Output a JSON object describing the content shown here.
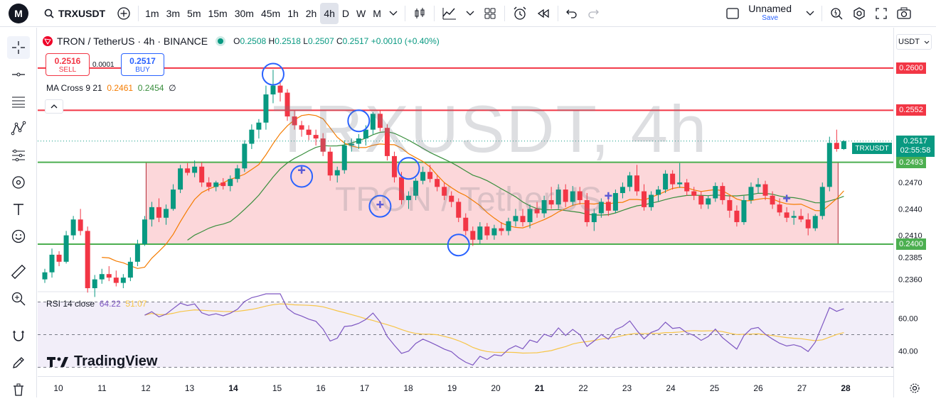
{
  "toolbar": {
    "logo_text": "M",
    "symbol": "TRXUSDT",
    "intervals": [
      "1m",
      "3m",
      "5m",
      "15m",
      "30m",
      "45m",
      "1h",
      "2h",
      "4h",
      "D",
      "W",
      "M"
    ],
    "active_interval": "4h",
    "layout_name": "Unnamed",
    "layout_save": "Save"
  },
  "legend": {
    "title": "TRON / TetherUS · 4h · BINANCE",
    "o_label": "O",
    "o": "0.2508",
    "h_label": "H",
    "h": "0.2518",
    "l_label": "L",
    "l": "0.2507",
    "c_label": "C",
    "c": "0.2517",
    "change": "+0.0010 (+0.40%)"
  },
  "trade": {
    "sell_price": "0.2516",
    "sell_label": "SELL",
    "spread": "0.0001",
    "buy_price": "0.2517",
    "buy_label": "BUY"
  },
  "ma": {
    "label": "MA Cross 9 21",
    "v1": "0.2461",
    "v2": "0.2454",
    "suffix": "∅"
  },
  "rsi": {
    "label": "RSI 14 close",
    "v1": "64.22",
    "v2": "51.07",
    "levels": [
      "60.00",
      "40.00"
    ]
  },
  "brand": "TradingView",
  "price_axis": {
    "currency": "USDT",
    "labels": [
      "0.2470",
      "0.2440",
      "0.2410",
      "0.2385",
      "0.2360"
    ],
    "tags": [
      {
        "text": "0.2600",
        "color": "#f23645"
      },
      {
        "text": "0.2552",
        "color": "#f23645"
      },
      {
        "text": "0.2517",
        "color": "#089981"
      },
      {
        "text": "0.2493",
        "color": "#4caf50"
      },
      {
        "text": "0.2400",
        "color": "#4caf50"
      }
    ],
    "symbol_tag": "TRXUSDT",
    "countdown": "02:55:58"
  },
  "watermark": {
    "line1": "TRXUSDT, 4h",
    "line2": "TRON / TetherUS"
  },
  "dates": [
    "10",
    "11",
    "12",
    "13",
    "14",
    "15",
    "16",
    "17",
    "18",
    "19",
    "20",
    "21",
    "22",
    "23",
    "24",
    "25",
    "26",
    "27",
    "28"
  ],
  "colors": {
    "up": "#089981",
    "down": "#f23645",
    "ma_fast": "#f57c00",
    "ma_slow": "#388e3c",
    "rsi": "#7e57c2",
    "rsi_ma": "#f7c548"
  },
  "chart_data": {
    "type": "candlestick",
    "candles": [
      [
        0.236,
        0.2372,
        0.2356,
        0.2368
      ],
      [
        0.2368,
        0.2395,
        0.2362,
        0.2388
      ],
      [
        0.2388,
        0.2392,
        0.2375,
        0.238
      ],
      [
        0.238,
        0.2415,
        0.2378,
        0.241
      ],
      [
        0.241,
        0.2432,
        0.2405,
        0.2428
      ],
      [
        0.2428,
        0.244,
        0.241,
        0.2415
      ],
      [
        0.2415,
        0.242,
        0.2345,
        0.235
      ],
      [
        0.235,
        0.2365,
        0.234,
        0.236
      ],
      [
        0.236,
        0.2372,
        0.2355,
        0.2366
      ],
      [
        0.2366,
        0.2375,
        0.2358,
        0.2362
      ],
      [
        0.2362,
        0.237,
        0.2352,
        0.2356
      ],
      [
        0.2356,
        0.2366,
        0.235,
        0.2362
      ],
      [
        0.2362,
        0.2385,
        0.2358,
        0.238
      ],
      [
        0.238,
        0.2405,
        0.2375,
        0.24
      ],
      [
        0.24,
        0.2432,
        0.2398,
        0.2428
      ],
      [
        0.2428,
        0.2448,
        0.242,
        0.2442
      ],
      [
        0.2442,
        0.2452,
        0.2425,
        0.243
      ],
      [
        0.243,
        0.2445,
        0.2422,
        0.244
      ],
      [
        0.244,
        0.2468,
        0.2438,
        0.2462
      ],
      [
        0.2462,
        0.249,
        0.2458,
        0.2486
      ],
      [
        0.2486,
        0.2492,
        0.2478,
        0.2481
      ],
      [
        0.2481,
        0.2495,
        0.2476,
        0.2488
      ],
      [
        0.2488,
        0.2493,
        0.2465,
        0.247
      ],
      [
        0.247,
        0.2476,
        0.246,
        0.2465
      ],
      [
        0.2465,
        0.2472,
        0.246,
        0.247
      ],
      [
        0.247,
        0.2475,
        0.2462,
        0.2466
      ],
      [
        0.2466,
        0.2478,
        0.246,
        0.2474
      ],
      [
        0.2474,
        0.249,
        0.247,
        0.2486
      ],
      [
        0.2486,
        0.2518,
        0.2482,
        0.2514
      ],
      [
        0.2514,
        0.2536,
        0.2508,
        0.253
      ],
      [
        0.253,
        0.2542,
        0.252,
        0.2538
      ],
      [
        0.2538,
        0.258,
        0.253,
        0.257
      ],
      [
        0.257,
        0.2598,
        0.256,
        0.258
      ],
      [
        0.258,
        0.2586,
        0.2562,
        0.2572
      ],
      [
        0.2572,
        0.2576,
        0.254,
        0.2545
      ],
      [
        0.2545,
        0.2552,
        0.253,
        0.2535
      ],
      [
        0.2535,
        0.254,
        0.2522,
        0.253
      ],
      [
        0.253,
        0.2535,
        0.2518,
        0.2524
      ],
      [
        0.2524,
        0.253,
        0.2512,
        0.252
      ],
      [
        0.252,
        0.2526,
        0.25,
        0.2505
      ],
      [
        0.2505,
        0.251,
        0.2472,
        0.2478
      ],
      [
        0.2478,
        0.2488,
        0.247,
        0.2484
      ],
      [
        0.2484,
        0.2518,
        0.248,
        0.2512
      ],
      [
        0.2512,
        0.252,
        0.2505,
        0.2514
      ],
      [
        0.2514,
        0.2525,
        0.2508,
        0.252
      ],
      [
        0.252,
        0.2535,
        0.2512,
        0.253
      ],
      [
        0.253,
        0.255,
        0.2525,
        0.2548
      ],
      [
        0.2548,
        0.2552,
        0.2528,
        0.2532
      ],
      [
        0.2532,
        0.2536,
        0.2495,
        0.25
      ],
      [
        0.25,
        0.2505,
        0.247,
        0.2476
      ],
      [
        0.2476,
        0.2482,
        0.2445,
        0.245
      ],
      [
        0.245,
        0.246,
        0.244,
        0.2455
      ],
      [
        0.2455,
        0.2475,
        0.245,
        0.2472
      ],
      [
        0.2472,
        0.2488,
        0.2468,
        0.2482
      ],
      [
        0.2482,
        0.249,
        0.247,
        0.2474
      ],
      [
        0.2474,
        0.2478,
        0.246,
        0.2465
      ],
      [
        0.2465,
        0.247,
        0.245,
        0.2455
      ],
      [
        0.2455,
        0.246,
        0.2442,
        0.2448
      ],
      [
        0.2448,
        0.2452,
        0.2425,
        0.243
      ],
      [
        0.243,
        0.2435,
        0.241,
        0.2415
      ],
      [
        0.2415,
        0.242,
        0.2398,
        0.2405
      ],
      [
        0.2405,
        0.2425,
        0.24,
        0.242
      ],
      [
        0.242,
        0.2424,
        0.2405,
        0.241
      ],
      [
        0.241,
        0.2422,
        0.2405,
        0.2418
      ],
      [
        0.2418,
        0.2425,
        0.241,
        0.2415
      ],
      [
        0.2415,
        0.243,
        0.241,
        0.2426
      ],
      [
        0.2426,
        0.244,
        0.242,
        0.2432
      ],
      [
        0.2432,
        0.244,
        0.242,
        0.2425
      ],
      [
        0.2425,
        0.2445,
        0.2418,
        0.244
      ],
      [
        0.244,
        0.2448,
        0.243,
        0.2435
      ],
      [
        0.2435,
        0.2455,
        0.243,
        0.245
      ],
      [
        0.245,
        0.2465,
        0.244,
        0.2445
      ],
      [
        0.2445,
        0.2468,
        0.244,
        0.2462
      ],
      [
        0.2462,
        0.2468,
        0.2442,
        0.2448
      ],
      [
        0.2448,
        0.2466,
        0.2444,
        0.246
      ],
      [
        0.246,
        0.2465,
        0.2445,
        0.245
      ],
      [
        0.245,
        0.2458,
        0.242,
        0.2425
      ],
      [
        0.2425,
        0.244,
        0.2415,
        0.2435
      ],
      [
        0.2435,
        0.2452,
        0.243,
        0.2448
      ],
      [
        0.2448,
        0.2454,
        0.2432,
        0.2438
      ],
      [
        0.2438,
        0.2462,
        0.2435,
        0.2458
      ],
      [
        0.2458,
        0.247,
        0.2452,
        0.2465
      ],
      [
        0.2465,
        0.2482,
        0.246,
        0.2478
      ],
      [
        0.2478,
        0.249,
        0.2455,
        0.246
      ],
      [
        0.246,
        0.2468,
        0.2438,
        0.2442
      ],
      [
        0.2442,
        0.246,
        0.2438,
        0.2456
      ],
      [
        0.2456,
        0.2466,
        0.2448,
        0.2462
      ],
      [
        0.2462,
        0.2484,
        0.2458,
        0.248
      ],
      [
        0.248,
        0.2484,
        0.2462,
        0.2468
      ],
      [
        0.2468,
        0.2492,
        0.2464,
        0.247
      ],
      [
        0.247,
        0.2474,
        0.2455,
        0.246
      ],
      [
        0.246,
        0.2465,
        0.245,
        0.2455
      ],
      [
        0.2455,
        0.246,
        0.244,
        0.2445
      ],
      [
        0.2445,
        0.2455,
        0.244,
        0.2452
      ],
      [
        0.2452,
        0.247,
        0.2448,
        0.2466
      ],
      [
        0.2466,
        0.247,
        0.2445,
        0.245
      ],
      [
        0.245,
        0.2455,
        0.243,
        0.2438
      ],
      [
        0.2438,
        0.2444,
        0.242,
        0.2425
      ],
      [
        0.2425,
        0.2455,
        0.2422,
        0.245
      ],
      [
        0.245,
        0.247,
        0.2446,
        0.2465
      ],
      [
        0.2465,
        0.2475,
        0.2458,
        0.2468
      ],
      [
        0.2468,
        0.2472,
        0.245,
        0.2455
      ],
      [
        0.2455,
        0.246,
        0.244,
        0.2445
      ],
      [
        0.2445,
        0.2452,
        0.2432,
        0.2436
      ],
      [
        0.2436,
        0.2442,
        0.2425,
        0.243
      ],
      [
        0.243,
        0.2438,
        0.2422,
        0.2432
      ],
      [
        0.2432,
        0.244,
        0.2425,
        0.2428
      ],
      [
        0.2428,
        0.2435,
        0.241,
        0.2418
      ],
      [
        0.2418,
        0.2434,
        0.2415,
        0.2432
      ],
      [
        0.2432,
        0.247,
        0.2428,
        0.2465
      ],
      [
        0.2465,
        0.2522,
        0.246,
        0.2515
      ],
      [
        0.2515,
        0.253,
        0.2505,
        0.2508
      ],
      [
        0.2508,
        0.2518,
        0.2507,
        0.2517
      ]
    ],
    "ylim": [
      0.2346,
      0.262
    ],
    "horizontal_levels": [
      0.26,
      0.2552,
      0.2493,
      0.24
    ],
    "current_price": 0.2517
  }
}
